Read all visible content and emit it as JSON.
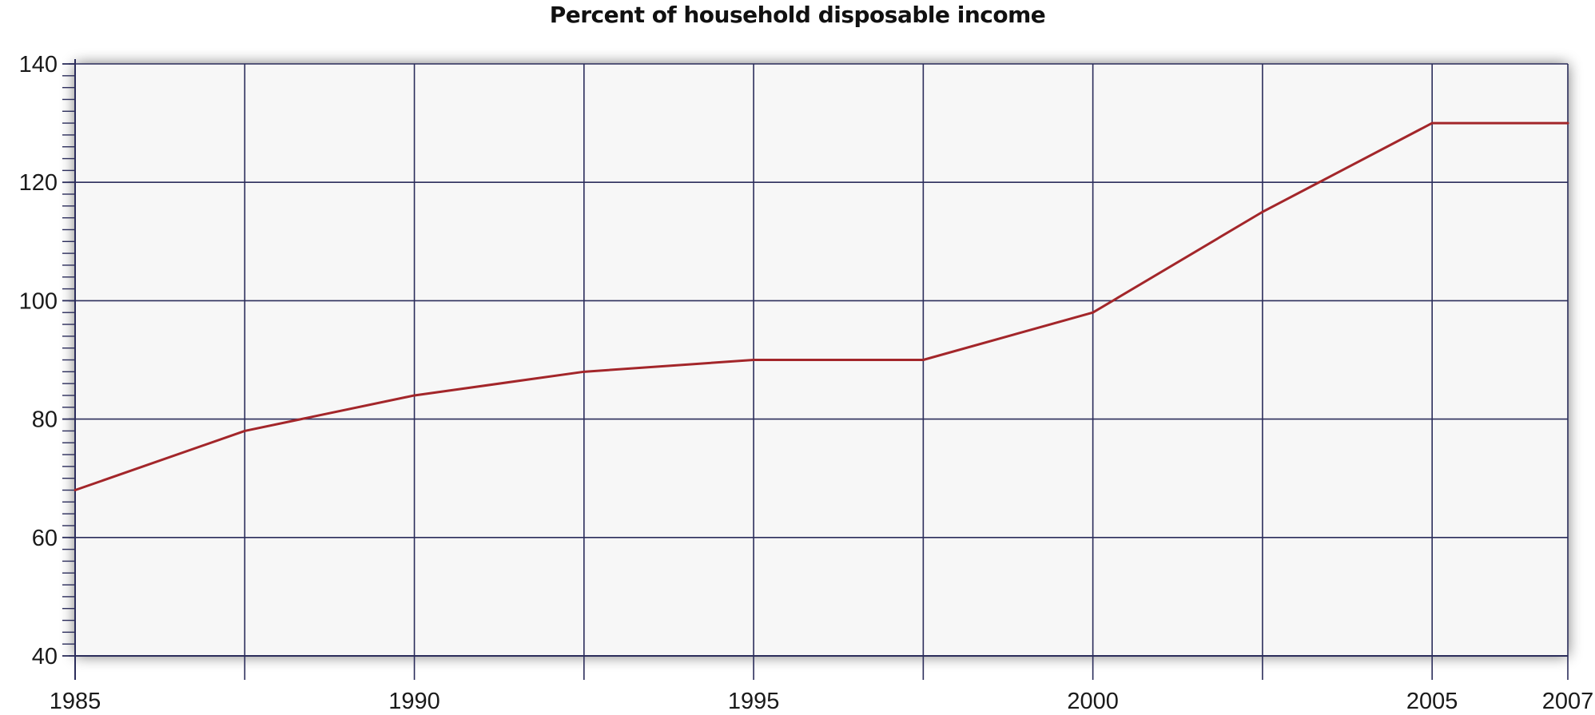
{
  "chart_data": {
    "type": "line",
    "title": "Percent of household disposable income",
    "xlabel": "",
    "ylabel": "",
    "xlim": [
      1985,
      2007
    ],
    "ylim": [
      40,
      140
    ],
    "x_ticks": [
      1985,
      1990,
      1995,
      2000,
      2005,
      2007
    ],
    "x_tick_labels": [
      "1985",
      "1990",
      "1995",
      "2000",
      "2005",
      "2007"
    ],
    "x_gridlines": [
      1985,
      1987.5,
      1990,
      1992.5,
      1995,
      1997.5,
      2000,
      2002.5,
      2005,
      2007
    ],
    "y_ticks": [
      40,
      60,
      80,
      100,
      120,
      140
    ],
    "y_tick_labels": [
      "40",
      "60",
      "80",
      "100",
      "120",
      "140"
    ],
    "y_minor_step": 2,
    "grid": true,
    "legend": "none",
    "colors": {
      "line": "#a3262a",
      "grid": "#2b2d5b",
      "plot_background": "#f7f7f7"
    },
    "series": [
      {
        "x": [
          1985,
          1987.5,
          1990,
          1992.5,
          1995,
          1997.5,
          2000,
          2002.5,
          2005,
          2007
        ],
        "values": [
          68,
          78,
          84,
          88,
          90,
          90,
          98,
          115,
          130,
          130
        ]
      }
    ]
  }
}
